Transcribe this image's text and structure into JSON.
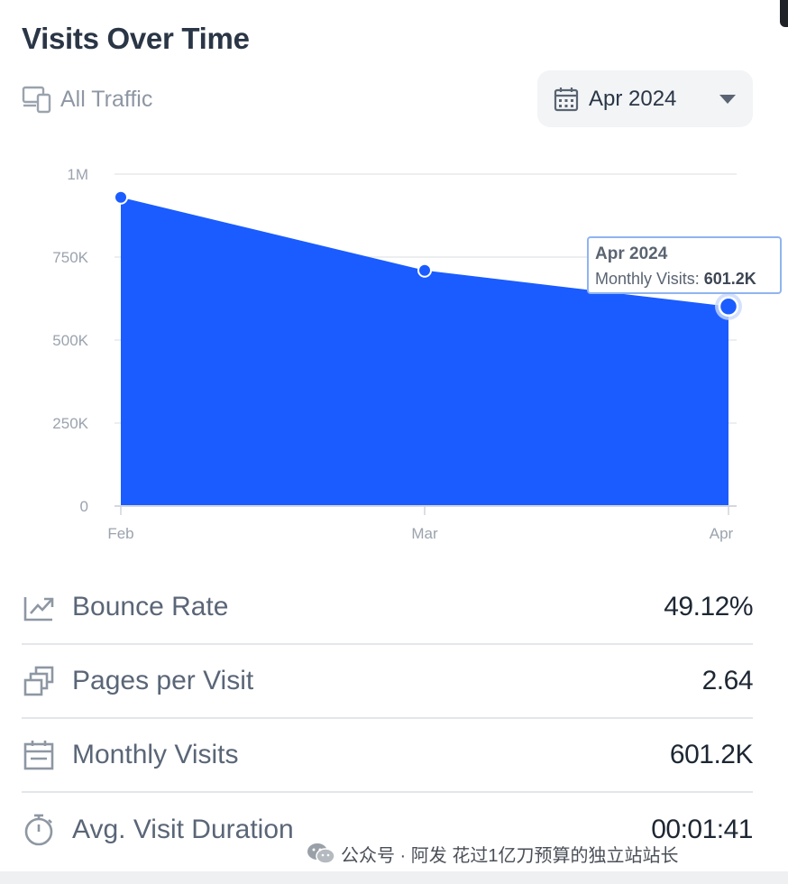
{
  "header": {
    "title": "Visits Over Time",
    "traffic_filter": "All Traffic",
    "date_select": {
      "selected": "Apr 2024"
    }
  },
  "chart_data": {
    "type": "area",
    "categories": [
      "Feb",
      "Mar",
      "Apr"
    ],
    "series": [
      {
        "values": [
          930000,
          710000,
          601200
        ]
      }
    ],
    "y_ticks": [
      "0",
      "250K",
      "500K",
      "750K",
      "1M"
    ],
    "ylim": [
      0,
      1000000
    ],
    "grid": true,
    "colors": {
      "fill": "#1a5cff",
      "marker": "#1a5cff",
      "grid": "#e6e8eb"
    }
  },
  "tooltip": {
    "title": "Apr 2024",
    "label": "Monthly Visits:",
    "value": "601.2K"
  },
  "metrics": [
    {
      "icon": "bounce-rate-icon",
      "label": "Bounce Rate",
      "value": "49.12%"
    },
    {
      "icon": "pages-per-visit-icon",
      "label": "Pages per Visit",
      "value": "2.64"
    },
    {
      "icon": "calendar-icon",
      "label": "Monthly Visits",
      "value": "601.2K"
    },
    {
      "icon": "stopwatch-icon",
      "label": "Avg. Visit Duration",
      "value": "00:01:41"
    }
  ],
  "watermark": {
    "text": "公众号 · 阿发 花过1亿刀预算的独立站站长"
  }
}
